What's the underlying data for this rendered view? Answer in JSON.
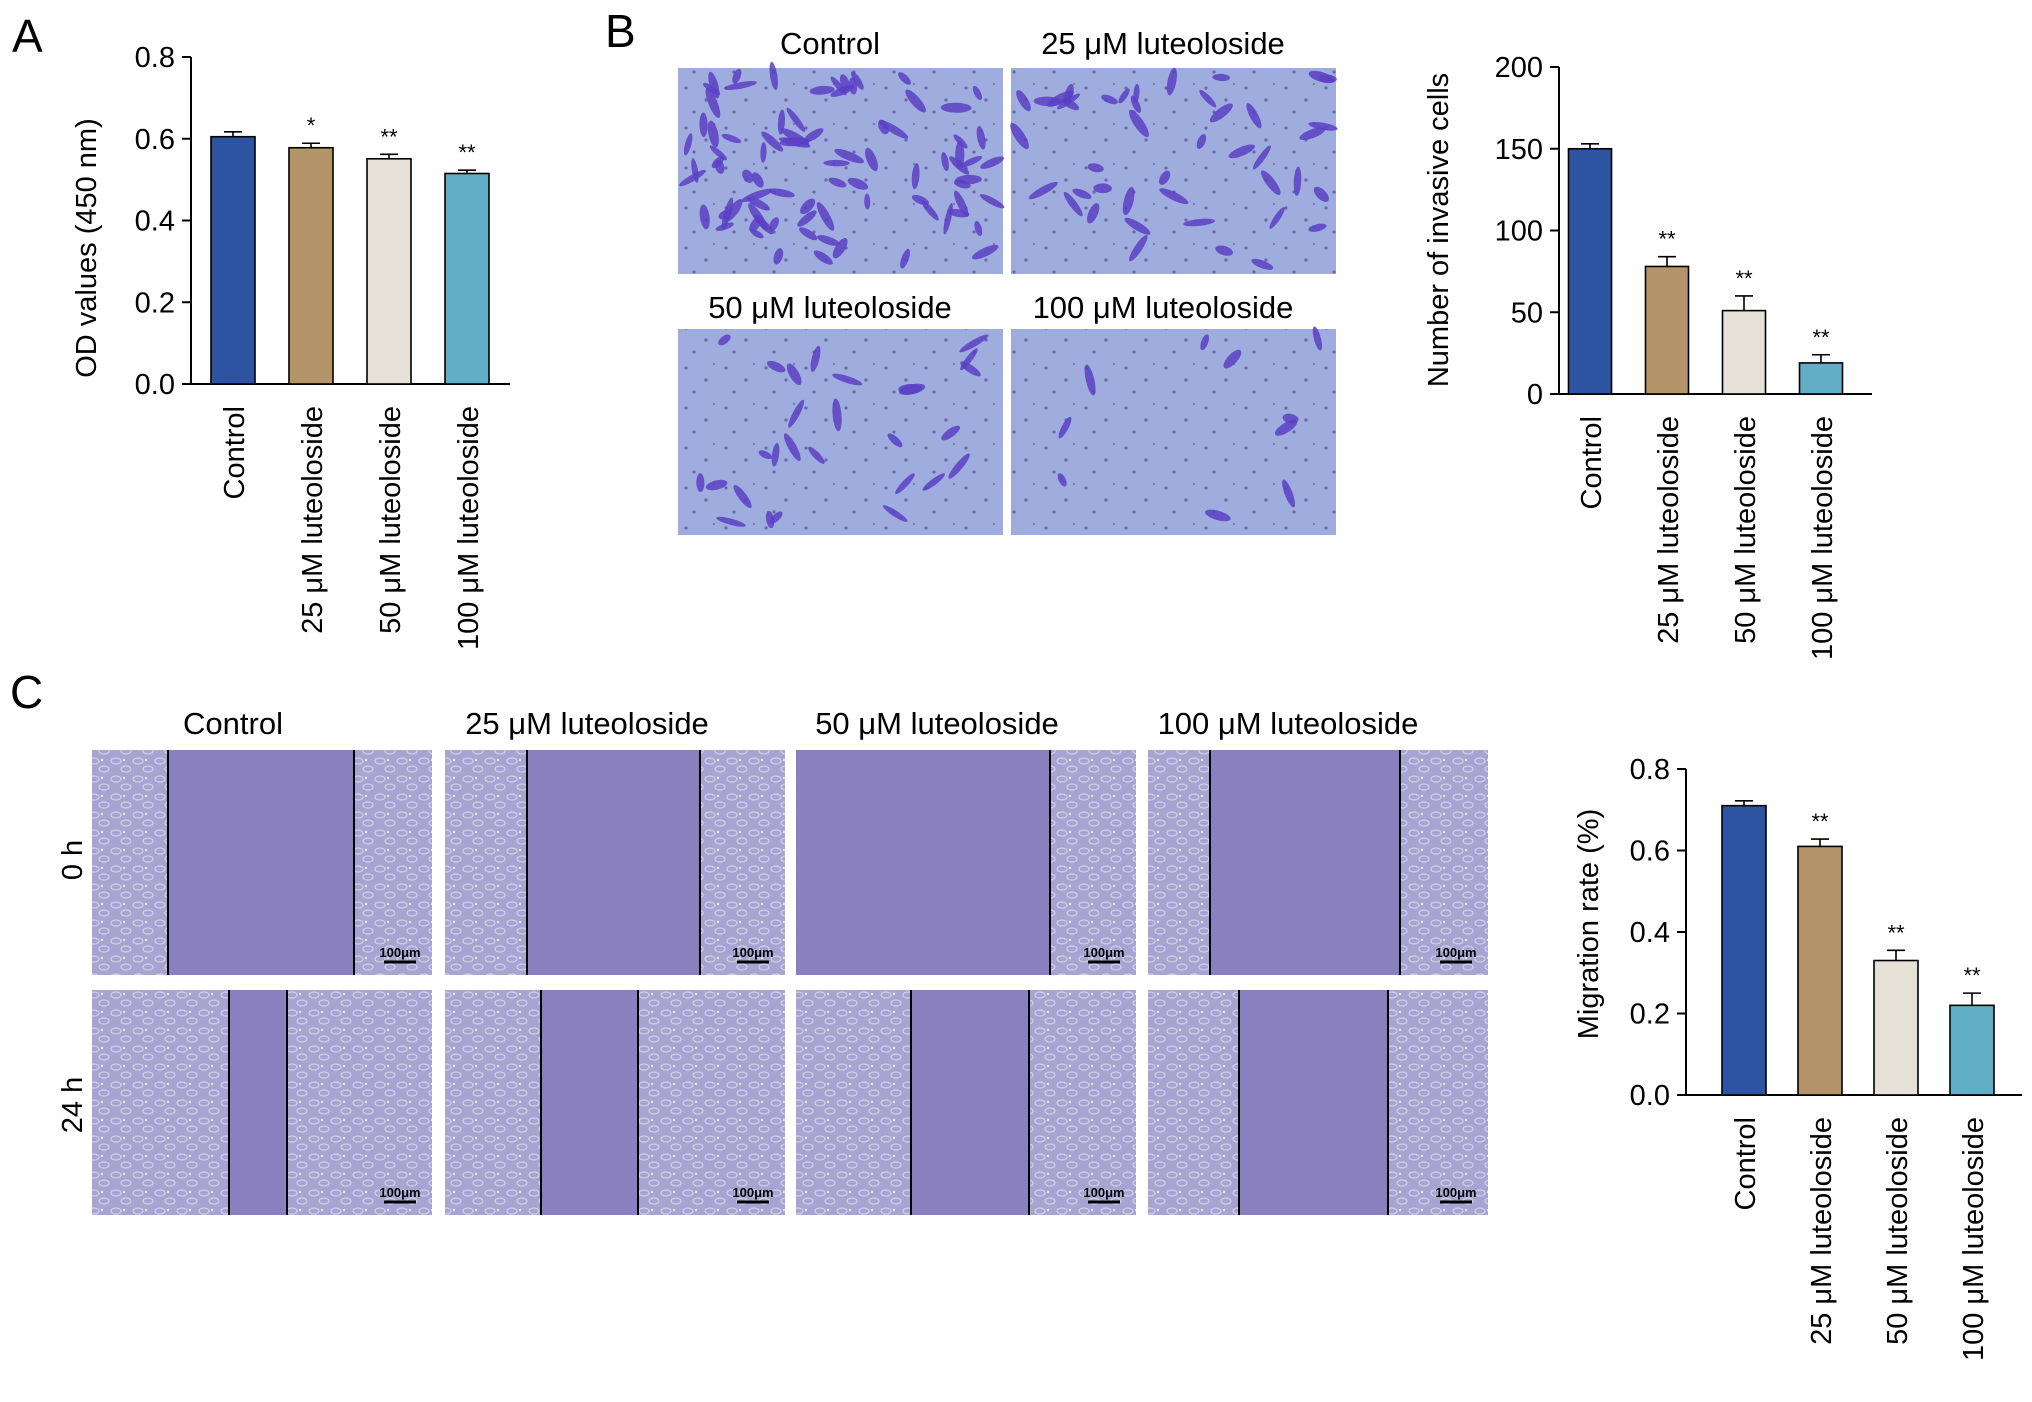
{
  "panels": {
    "A": {
      "letter": "A"
    },
    "B": {
      "letter": "B",
      "image_titles": [
        "Control",
        "25 μM luteoloside",
        "50 μM luteoloside",
        "100 μM luteoloside"
      ]
    },
    "C": {
      "letter": "C",
      "column_titles": [
        "Control",
        "25 μM luteoloside",
        "50 μM luteoloside",
        "100 μM luteoloside"
      ],
      "row_labels": [
        "0 h",
        "24 h"
      ],
      "scale_bar_label": "100μm"
    }
  },
  "colors": {
    "control": "#2d54a1",
    "luteo25": "#b4956a",
    "luteo50": "#e6e1d7",
    "luteo100": "#62aec6",
    "axis": "#000000",
    "micrograph_invasion": "#9aa9dc",
    "micrograph_wound": "#8d83c3"
  },
  "chart_data": [
    {
      "panel": "A",
      "type": "bar",
      "categories": [
        "Control",
        "25 μM luteoloside",
        "50 μM luteoloside",
        "100 μM luteoloside"
      ],
      "values": [
        0.605,
        0.578,
        0.551,
        0.515
      ],
      "errors": [
        0.012,
        0.011,
        0.011,
        0.008
      ],
      "significance": [
        "",
        "*",
        "**",
        "**"
      ],
      "ylabel": "OD values (450 nm)",
      "ylim": [
        0,
        0.8
      ],
      "yticks": [
        "0.0",
        "0.2",
        "0.4",
        "0.6",
        "0.8"
      ]
    },
    {
      "panel": "B",
      "type": "bar",
      "categories": [
        "Control",
        "25 μM luteoloside",
        "50 μM luteoloside",
        "100 μM luteoloside"
      ],
      "values": [
        150,
        78,
        51,
        19
      ],
      "errors": [
        3,
        6,
        9,
        5
      ],
      "significance": [
        "",
        "**",
        "**",
        "**"
      ],
      "ylabel": "Number of invasive cells",
      "ylim": [
        0,
        200
      ],
      "yticks": [
        "0",
        "50",
        "100",
        "150",
        "200"
      ]
    },
    {
      "panel": "C",
      "type": "bar",
      "categories": [
        "Control",
        "25 μM luteoloside",
        "50 μM luteoloside",
        "100 μM luteoloside"
      ],
      "values": [
        0.71,
        0.61,
        0.33,
        0.22
      ],
      "errors": [
        0.012,
        0.018,
        0.025,
        0.03
      ],
      "significance": [
        "",
        "**",
        "**",
        "**"
      ],
      "ylabel": "Migration rate (%)",
      "ylim": [
        0,
        0.8
      ],
      "yticks": [
        "0.0",
        "0.2",
        "0.4",
        "0.6",
        "0.8"
      ]
    }
  ]
}
